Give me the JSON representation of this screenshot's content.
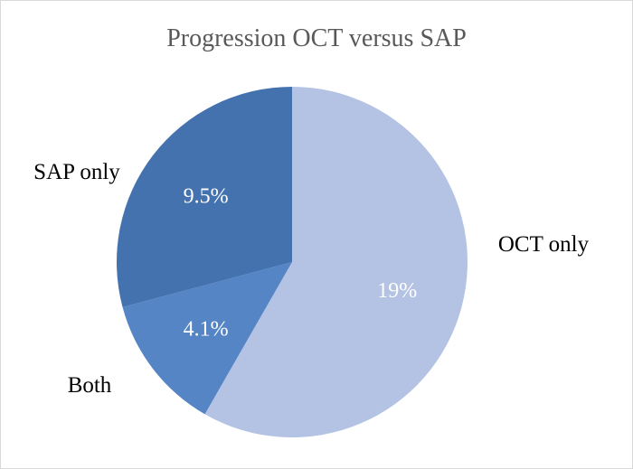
{
  "chart_data": {
    "type": "pie",
    "title": "Progression OCT versus SAP",
    "categories": [
      "OCT only",
      "Both",
      "SAP only"
    ],
    "values": [
      19,
      4.1,
      9.5
    ],
    "value_labels": [
      "19%",
      "4.1%",
      "9.5%"
    ],
    "colors": [
      "#b4c3e4",
      "#5585c5",
      "#4472ae"
    ],
    "legend": "none"
  }
}
